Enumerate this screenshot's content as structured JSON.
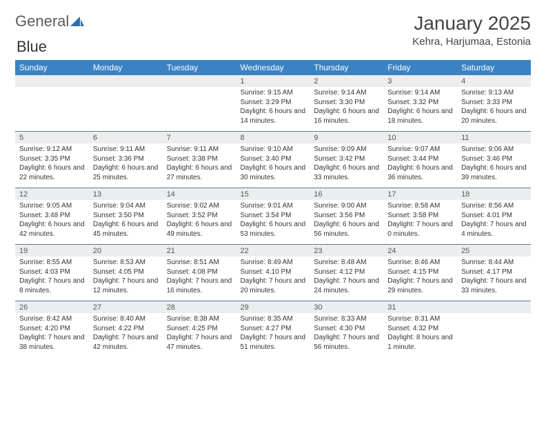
{
  "brand": {
    "part1": "General",
    "part2": "Blue"
  },
  "title": "January 2025",
  "location": "Kehra, Harjumaa, Estonia",
  "colors": {
    "header_bg": "#3b82c4",
    "header_text": "#ffffff",
    "daynum_bg": "#ebedef",
    "row_border": "#5a7a9a",
    "brand_blue": "#2f6fab",
    "text": "#333333",
    "background": "#ffffff"
  },
  "typography": {
    "month_title_pt": 28,
    "location_pt": 15,
    "dayheader_pt": 12,
    "daynum_pt": 11,
    "detail_pt": 10
  },
  "layout": {
    "columns": 7,
    "rows": 5,
    "first_day_column_index": 3
  },
  "day_names": [
    "Sunday",
    "Monday",
    "Tuesday",
    "Wednesday",
    "Thursday",
    "Friday",
    "Saturday"
  ],
  "weeks": [
    [
      null,
      null,
      null,
      {
        "n": "1",
        "sunrise": "9:15 AM",
        "sunset": "3:29 PM",
        "daylight": "6 hours and 14 minutes."
      },
      {
        "n": "2",
        "sunrise": "9:14 AM",
        "sunset": "3:30 PM",
        "daylight": "6 hours and 16 minutes."
      },
      {
        "n": "3",
        "sunrise": "9:14 AM",
        "sunset": "3:32 PM",
        "daylight": "6 hours and 18 minutes."
      },
      {
        "n": "4",
        "sunrise": "9:13 AM",
        "sunset": "3:33 PM",
        "daylight": "6 hours and 20 minutes."
      }
    ],
    [
      {
        "n": "5",
        "sunrise": "9:12 AM",
        "sunset": "3:35 PM",
        "daylight": "6 hours and 22 minutes."
      },
      {
        "n": "6",
        "sunrise": "9:11 AM",
        "sunset": "3:36 PM",
        "daylight": "6 hours and 25 minutes."
      },
      {
        "n": "7",
        "sunrise": "9:11 AM",
        "sunset": "3:38 PM",
        "daylight": "6 hours and 27 minutes."
      },
      {
        "n": "8",
        "sunrise": "9:10 AM",
        "sunset": "3:40 PM",
        "daylight": "6 hours and 30 minutes."
      },
      {
        "n": "9",
        "sunrise": "9:09 AM",
        "sunset": "3:42 PM",
        "daylight": "6 hours and 33 minutes."
      },
      {
        "n": "10",
        "sunrise": "9:07 AM",
        "sunset": "3:44 PM",
        "daylight": "6 hours and 36 minutes."
      },
      {
        "n": "11",
        "sunrise": "9:06 AM",
        "sunset": "3:46 PM",
        "daylight": "6 hours and 39 minutes."
      }
    ],
    [
      {
        "n": "12",
        "sunrise": "9:05 AM",
        "sunset": "3:48 PM",
        "daylight": "6 hours and 42 minutes."
      },
      {
        "n": "13",
        "sunrise": "9:04 AM",
        "sunset": "3:50 PM",
        "daylight": "6 hours and 45 minutes."
      },
      {
        "n": "14",
        "sunrise": "9:02 AM",
        "sunset": "3:52 PM",
        "daylight": "6 hours and 49 minutes."
      },
      {
        "n": "15",
        "sunrise": "9:01 AM",
        "sunset": "3:54 PM",
        "daylight": "6 hours and 53 minutes."
      },
      {
        "n": "16",
        "sunrise": "9:00 AM",
        "sunset": "3:56 PM",
        "daylight": "6 hours and 56 minutes."
      },
      {
        "n": "17",
        "sunrise": "8:58 AM",
        "sunset": "3:58 PM",
        "daylight": "7 hours and 0 minutes."
      },
      {
        "n": "18",
        "sunrise": "8:56 AM",
        "sunset": "4:01 PM",
        "daylight": "7 hours and 4 minutes."
      }
    ],
    [
      {
        "n": "19",
        "sunrise": "8:55 AM",
        "sunset": "4:03 PM",
        "daylight": "7 hours and 8 minutes."
      },
      {
        "n": "20",
        "sunrise": "8:53 AM",
        "sunset": "4:05 PM",
        "daylight": "7 hours and 12 minutes."
      },
      {
        "n": "21",
        "sunrise": "8:51 AM",
        "sunset": "4:08 PM",
        "daylight": "7 hours and 16 minutes."
      },
      {
        "n": "22",
        "sunrise": "8:49 AM",
        "sunset": "4:10 PM",
        "daylight": "7 hours and 20 minutes."
      },
      {
        "n": "23",
        "sunrise": "8:48 AM",
        "sunset": "4:12 PM",
        "daylight": "7 hours and 24 minutes."
      },
      {
        "n": "24",
        "sunrise": "8:46 AM",
        "sunset": "4:15 PM",
        "daylight": "7 hours and 29 minutes."
      },
      {
        "n": "25",
        "sunrise": "8:44 AM",
        "sunset": "4:17 PM",
        "daylight": "7 hours and 33 minutes."
      }
    ],
    [
      {
        "n": "26",
        "sunrise": "8:42 AM",
        "sunset": "4:20 PM",
        "daylight": "7 hours and 38 minutes."
      },
      {
        "n": "27",
        "sunrise": "8:40 AM",
        "sunset": "4:22 PM",
        "daylight": "7 hours and 42 minutes."
      },
      {
        "n": "28",
        "sunrise": "8:38 AM",
        "sunset": "4:25 PM",
        "daylight": "7 hours and 47 minutes."
      },
      {
        "n": "29",
        "sunrise": "8:35 AM",
        "sunset": "4:27 PM",
        "daylight": "7 hours and 51 minutes."
      },
      {
        "n": "30",
        "sunrise": "8:33 AM",
        "sunset": "4:30 PM",
        "daylight": "7 hours and 56 minutes."
      },
      {
        "n": "31",
        "sunrise": "8:31 AM",
        "sunset": "4:32 PM",
        "daylight": "8 hours and 1 minute."
      },
      null
    ]
  ],
  "labels": {
    "sunrise": "Sunrise:",
    "sunset": "Sunset:",
    "daylight": "Daylight:"
  }
}
